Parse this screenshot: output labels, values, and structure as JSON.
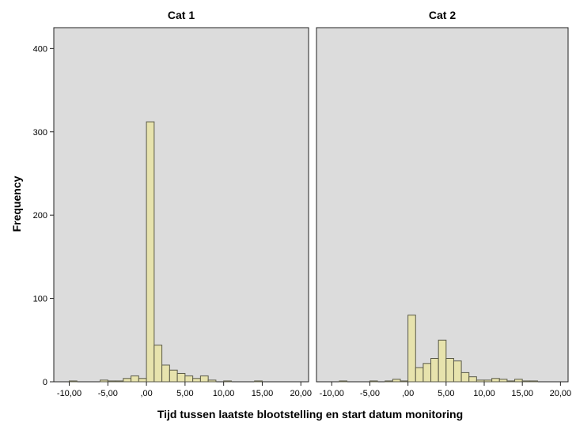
{
  "chart_data": {
    "type": "bar",
    "subtype": "histogram-panels",
    "ylabel": "Frequency",
    "xlabel": "Tijd tussen laatste blootstelling en start datum monitoring",
    "x_tick_labels": [
      "-10,00",
      "-5,00",
      ",00",
      "5,00",
      "10,00",
      "15,00",
      "20,00"
    ],
    "x_ticks": [
      -10,
      -5,
      0,
      5,
      10,
      15,
      20
    ],
    "y_tick_labels": [
      "0",
      "100",
      "200",
      "300",
      "400"
    ],
    "y_ticks": [
      0,
      100,
      200,
      300,
      400
    ],
    "xlim": [
      -12,
      21
    ],
    "ylim": [
      0,
      425
    ],
    "bin_width": 1,
    "colors": {
      "bar_fill": "#e7e3ad",
      "bar_stroke": "#5a5a48",
      "panel_bg": "#dcdcdc"
    },
    "panels": [
      {
        "title": "Cat 1",
        "bins": [
          [
            -10,
            1
          ],
          [
            -6,
            2
          ],
          [
            -5,
            1
          ],
          [
            -4,
            1
          ],
          [
            -3,
            4
          ],
          [
            -2,
            7
          ],
          [
            -1,
            4
          ],
          [
            0,
            312
          ],
          [
            1,
            44
          ],
          [
            2,
            20
          ],
          [
            3,
            14
          ],
          [
            4,
            10
          ],
          [
            5,
            7
          ],
          [
            6,
            4
          ],
          [
            7,
            7
          ],
          [
            8,
            2
          ],
          [
            10,
            1
          ],
          [
            14,
            1
          ]
        ]
      },
      {
        "title": "Cat 2",
        "bins": [
          [
            -9,
            1
          ],
          [
            -5,
            1
          ],
          [
            -3,
            1
          ],
          [
            -2,
            3
          ],
          [
            -1,
            1
          ],
          [
            0,
            80
          ],
          [
            1,
            17
          ],
          [
            2,
            22
          ],
          [
            3,
            28
          ],
          [
            4,
            50
          ],
          [
            5,
            28
          ],
          [
            6,
            25
          ],
          [
            7,
            11
          ],
          [
            8,
            6
          ],
          [
            9,
            2
          ],
          [
            10,
            2
          ],
          [
            11,
            4
          ],
          [
            12,
            3
          ],
          [
            13,
            1
          ],
          [
            14,
            3
          ],
          [
            15,
            1
          ],
          [
            16,
            1
          ]
        ]
      }
    ]
  }
}
